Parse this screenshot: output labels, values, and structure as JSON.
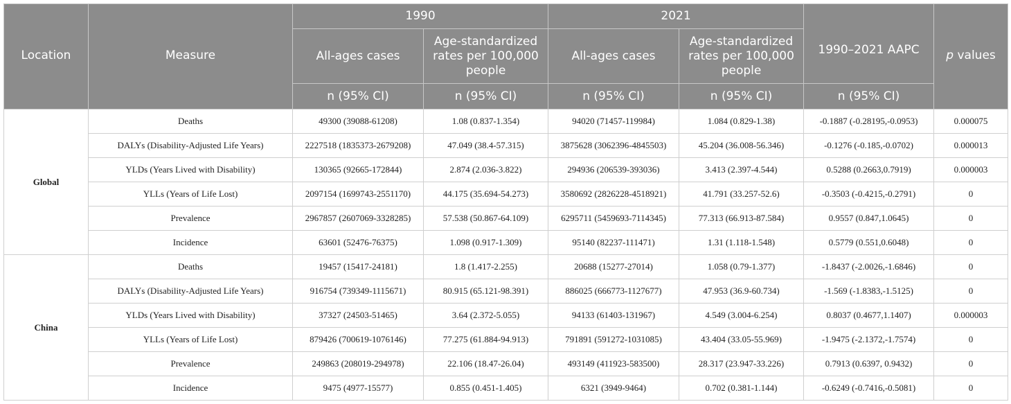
{
  "header": {
    "location": "Location",
    "measure": "Measure",
    "year_1990": "1990",
    "year_2021": "2021",
    "all_ages_cases": "All-ages cases",
    "age_std_rates": "Age-standardized rates per 100,000 people",
    "aapc": "1990–2021 AAPC",
    "p_prefix": "p",
    "p_suffix": " values",
    "n_ci": "n (95% CI)"
  },
  "groups": [
    {
      "location": "Global",
      "rows": [
        {
          "measure": "Deaths",
          "cases_1990": "49300 (39088-61208)",
          "rate_1990": "1.08 (0.837-1.354)",
          "cases_2021": "94020 (71457-119984)",
          "rate_2021": "1.084 (0.829-1.38)",
          "aapc": "-0.1887 (-0.28195,-0.0953)",
          "p": "0.000075"
        },
        {
          "measure": "DALYs (Disability-Adjusted Life Years)",
          "cases_1990": "2227518 (1835373-2679208)",
          "rate_1990": "47.049 (38.4-57.315)",
          "cases_2021": "3875628 (3062396-4845503)",
          "rate_2021": "45.204 (36.008-56.346)",
          "aapc": "-0.1276 (-0.185,-0.0702)",
          "p": "0.000013"
        },
        {
          "measure": "YLDs (Years Lived with Disability)",
          "cases_1990": "130365 (92665-172844)",
          "rate_1990": "2.874 (2.036-3.822)",
          "cases_2021": "294936 (206539-393036)",
          "rate_2021": "3.413 (2.397-4.544)",
          "aapc": "0.5288 (0.2663,0.7919)",
          "p": "0.000003"
        },
        {
          "measure": "YLLs (Years of Life Lost)",
          "cases_1990": "2097154 (1699743-2551170)",
          "rate_1990": "44.175 (35.694-54.273)",
          "cases_2021": "3580692 (2826228-4518921)",
          "rate_2021": "41.791 (33.257-52.6)",
          "aapc": "-0.3503 (-0.4215,-0.2791)",
          "p": "0"
        },
        {
          "measure": "Prevalence",
          "cases_1990": "2967857 (2607069-3328285)",
          "rate_1990": "57.538 (50.867-64.109)",
          "cases_2021": "6295711 (5459693-7114345)",
          "rate_2021": "77.313 (66.913-87.584)",
          "aapc": "0.9557 (0.847,1.0645)",
          "p": "0"
        },
        {
          "measure": "Incidence",
          "cases_1990": "63601 (52476-76375)",
          "rate_1990": "1.098 (0.917-1.309)",
          "cases_2021": "95140 (82237-111471)",
          "rate_2021": "1.31 (1.118-1.548)",
          "aapc": "0.5779 (0.551,0.6048)",
          "p": "0"
        }
      ]
    },
    {
      "location": "China",
      "rows": [
        {
          "measure": "Deaths",
          "cases_1990": "19457 (15417-24181)",
          "rate_1990": "1.8 (1.417-2.255)",
          "cases_2021": "20688 (15277-27014)",
          "rate_2021": "1.058 (0.79-1.377)",
          "aapc": "-1.8437 (-2.0026,-1.6846)",
          "p": "0"
        },
        {
          "measure": "DALYs (Disability-Adjusted Life Years)",
          "cases_1990": "916754 (739349-1115671)",
          "rate_1990": "80.915 (65.121-98.391)",
          "cases_2021": "886025 (666773-1127677)",
          "rate_2021": "47.953 (36.9-60.734)",
          "aapc": "-1.569 (-1.8383,-1.5125)",
          "p": "0"
        },
        {
          "measure": "YLDs (Years Lived with Disability)",
          "cases_1990": "37327 (24503-51465)",
          "rate_1990": "3.64 (2.372-5.055)",
          "cases_2021": "94133 (61403-131967)",
          "rate_2021": "4.549 (3.004-6.254)",
          "aapc": "0.8037 (0.4677,1.1407)",
          "p": "0.000003"
        },
        {
          "measure": "YLLs (Years of Life Lost)",
          "cases_1990": "879426 (700619-1076146)",
          "rate_1990": "77.275 (61.884-94.913)",
          "cases_2021": "791891 (591272-1031085)",
          "rate_2021": "43.404 (33.05-55.969)",
          "aapc": "-1.9475 (-2.1372,-1.7574)",
          "p": "0"
        },
        {
          "measure": "Prevalence",
          "cases_1990": "249863 (208019-294978)",
          "rate_1990": "22.106 (18.47-26.04)",
          "cases_2021": "493149 (411923-583500)",
          "rate_2021": "28.317 (23.947-33.226)",
          "aapc": "0.7913 (0.6397, 0.9432)",
          "p": "0"
        },
        {
          "measure": "Incidence",
          "cases_1990": "9475 (4977-15577)",
          "rate_1990": "0.855 (0.451-1.405)",
          "cases_2021": "6321 (3949-9464)",
          "rate_2021": "0.702 (0.381-1.144)",
          "aapc": "-0.6249 (-0.7416,-0.5081)",
          "p": "0"
        }
      ]
    }
  ]
}
